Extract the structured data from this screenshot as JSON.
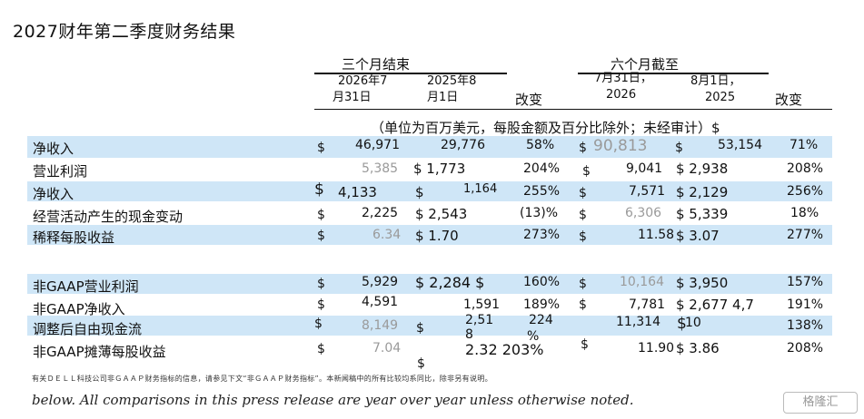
{
  "title": "2027财年第二季度财务结果",
  "headers": {
    "three_months": "三个月结束",
    "six_months": "六个月截至",
    "col_2026_jul31_l1": "2026年7",
    "col_2026_jul31_l2": "月31日",
    "col_2025_aug1_l1": "2025年8",
    "col_2025_aug1_l2": "月1日",
    "change": "改变",
    "col_jul31_l1": "7月31日，",
    "col_jul31_l2": "2026",
    "col_aug1_l1": "8月1日，",
    "col_aug1_l2": "2025",
    "change2": "改变",
    "unit_note": "（单位为百万美元，每股金额及百分比除外；未经审计）$"
  },
  "rows": [
    {
      "label": "净收入",
      "a": "46,971",
      "b": "29,776",
      "c": "58%",
      "d": "90,813",
      "e": "53,154",
      "f": "71%"
    },
    {
      "label": "营业利润",
      "a": "5,385",
      "b": "$ 1,773",
      "c": "204%",
      "d": "9,041",
      "e": "$ 2,938",
      "f": "208%"
    },
    {
      "label": "净收入",
      "a": "4,133",
      "b": "1,164",
      "c": "255%",
      "d": "7,571",
      "e": "$ 2,129",
      "f": "256%"
    },
    {
      "label": "经营活动产生的现金变动",
      "a": "2,225",
      "b": "$ 2,543",
      "c": "(13)%",
      "d": "6,306",
      "e": "$ 5,339",
      "f": "18%"
    },
    {
      "label": "稀释每股收益",
      "a": "6.34",
      "b": "$ 1.70",
      "c": "273%",
      "d": "11.58",
      "e": "$ 3.07",
      "f": "277%"
    },
    {
      "label": "非GAAP营业利润",
      "a": "5,929",
      "b": "$ 2,284 $",
      "c": "160%",
      "d": "10,164",
      "e": "$ 3,950",
      "f": "157%"
    },
    {
      "label": "非GAAP净收入",
      "a": "4,591",
      "b": "1,591",
      "c": "189%",
      "d": "7,781",
      "e": "$ 2,677 4,7",
      "f": "191%"
    },
    {
      "label": "调整后自由现金流",
      "a": "8,149",
      "b_l1": "2,51",
      "b_l2": "8",
      "c_l1": "224",
      "c_l2": "%",
      "d": "11,314",
      "e": "10",
      "f": "138%"
    },
    {
      "label": "非GAAP摊薄每股收益",
      "a": "7.04",
      "b": "2.32 203%",
      "d": "11.90",
      "e": "$ 3.86",
      "f": "208%"
    }
  ],
  "dollar": "$",
  "dollar_bold": "$",
  "note": "有关ＤＥＬＬ科技公司非ＧＡＡＰ财务指标的信息，请参见下文“非ＧＡＡＰ财务指标”。本新闻稿中的所有比较均系同比，除非另有说明。",
  "footer": "below. All comparisons in this press release are year over year unless otherwise noted.",
  "logo_text": "格隆汇"
}
